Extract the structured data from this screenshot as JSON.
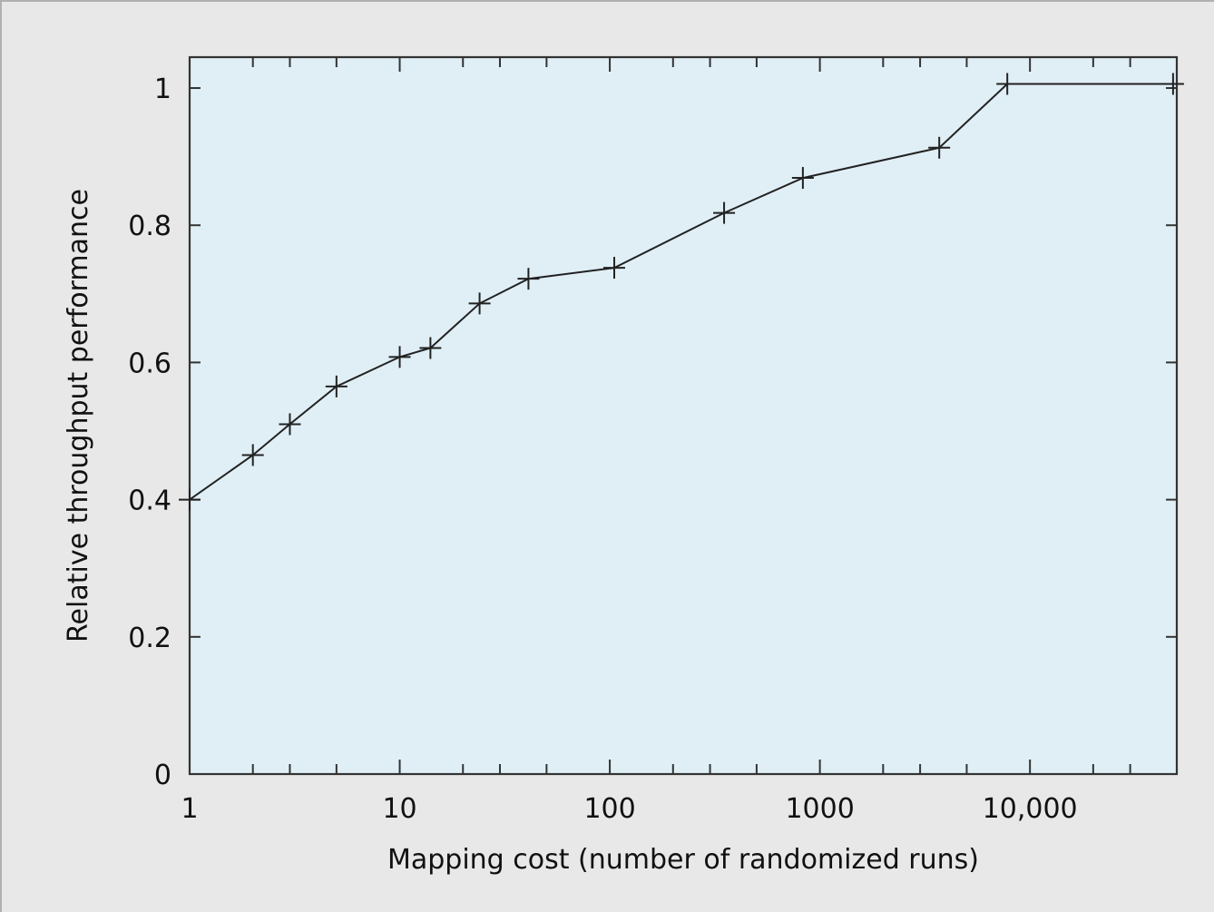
{
  "chart_data": {
    "type": "line",
    "title": "",
    "xlabel": "Mapping cost (number of randomized runs)",
    "ylabel": "Relative throughput performance",
    "x_scale": "log",
    "xlim": [
      1,
      50000
    ],
    "ylim": [
      0,
      1.045
    ],
    "x_ticks": [
      {
        "value": 1,
        "label": "1"
      },
      {
        "value": 10,
        "label": "10"
      },
      {
        "value": 100,
        "label": "100"
      },
      {
        "value": 1000,
        "label": "1000"
      },
      {
        "value": 10000,
        "label": "10,000"
      }
    ],
    "y_ticks": [
      {
        "value": 0,
        "label": "0"
      },
      {
        "value": 0.2,
        "label": "0.2"
      },
      {
        "value": 0.4,
        "label": "0.4"
      },
      {
        "value": 0.6,
        "label": "0.6"
      },
      {
        "value": 0.8,
        "label": "0.8"
      },
      {
        "value": 1,
        "label": "1"
      }
    ],
    "grid": false,
    "marker": "plus",
    "series": [
      {
        "x": [
          1,
          2,
          3,
          5,
          10,
          14,
          24,
          41,
          105,
          350,
          830,
          3700,
          7800,
          48000
        ],
        "y": [
          0.4,
          0.465,
          0.51,
          0.565,
          0.608,
          0.621,
          0.686,
          0.722,
          0.738,
          0.818,
          0.869,
          0.913,
          1.006,
          1.006
        ]
      }
    ],
    "colors": {
      "plot_background": "#e0eff6",
      "line": "#222222",
      "page_background": "#e8e8e8"
    }
  }
}
